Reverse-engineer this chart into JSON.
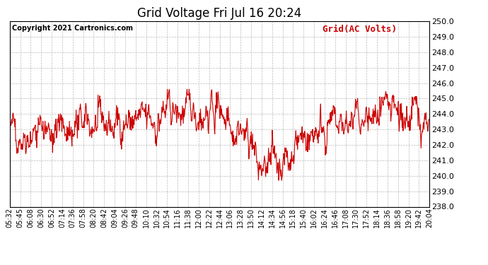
{
  "title": "Grid Voltage Fri Jul 16 20:24",
  "legend_label": "Grid(AC Volts)",
  "legend_color": "#cc0000",
  "copyright_text": "Copyright 2021 Cartronics.com",
  "line_color": "#cc0000",
  "background_color": "#ffffff",
  "plot_bg_color": "#ffffff",
  "ylim": [
    238.0,
    250.0
  ],
  "yticks": [
    238.0,
    239.0,
    240.0,
    241.0,
    242.0,
    243.0,
    244.0,
    245.0,
    246.0,
    247.0,
    248.0,
    249.0,
    250.0
  ],
  "xtick_labels": [
    "05:32",
    "05:45",
    "06:08",
    "06:30",
    "06:52",
    "07:14",
    "07:36",
    "07:58",
    "08:20",
    "08:42",
    "09:04",
    "09:26",
    "09:48",
    "10:10",
    "10:32",
    "10:54",
    "11:16",
    "11:38",
    "12:00",
    "12:22",
    "12:44",
    "13:06",
    "13:28",
    "13:50",
    "14:12",
    "14:34",
    "14:56",
    "15:18",
    "15:40",
    "16:02",
    "16:24",
    "16:46",
    "17:08",
    "17:30",
    "17:52",
    "18:14",
    "18:36",
    "18:58",
    "19:20",
    "19:42",
    "20:04"
  ],
  "grid_color": "#bbbbbb",
  "grid_linestyle": "--",
  "title_fontsize": 12,
  "axis_fontsize": 7,
  "legend_fontsize": 9,
  "copyright_fontsize": 7,
  "line_width": 0.8,
  "seed": 42,
  "n_points": 1000
}
